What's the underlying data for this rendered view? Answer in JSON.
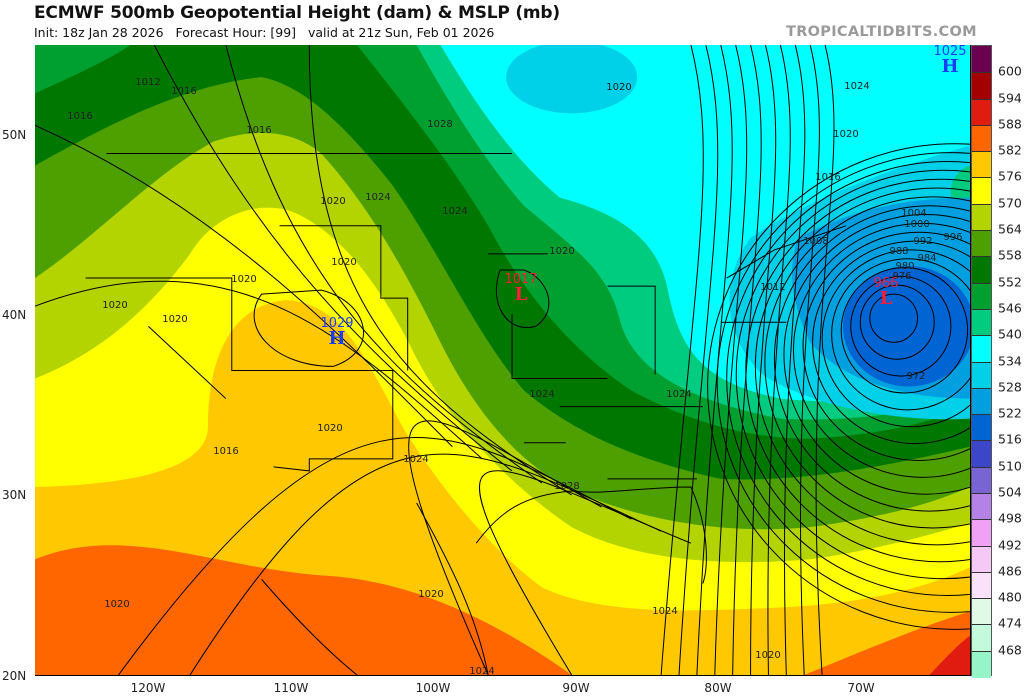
{
  "header": {
    "title": "ECMWF 500mb Geopotential Height (dam) & MSLP (mb)",
    "subtitle": "Init: 18z Jan 28 2026   Forecast Hour: [99]   valid at 21z Sun, Feb 01 2026",
    "watermark": "TROPICALTIDBITS.COM"
  },
  "axes": {
    "lat_labels": [
      "50N",
      "40N",
      "30N",
      "20N"
    ],
    "lon_labels": [
      "120W",
      "110W",
      "100W",
      "90W",
      "80W",
      "70W"
    ]
  },
  "pressure_centers": [
    {
      "type": "H",
      "value": "1029",
      "color": "#1a3cff"
    },
    {
      "type": "L",
      "value": "1017",
      "color": "#ff1a3c"
    },
    {
      "type": "L",
      "value": "966",
      "color": "#ff1a3c"
    },
    {
      "type": "H",
      "value": "1025",
      "color": "#1a3cff"
    }
  ],
  "isobar_labels": [
    "1012",
    "1016",
    "1016",
    "1016",
    "1028",
    "1020",
    "1024",
    "1020",
    "1016",
    "1020",
    "1024",
    "1024",
    "1020",
    "1020",
    "1020",
    "1020",
    "1020",
    "1004",
    "1000",
    "996",
    "992",
    "988",
    "984",
    "980",
    "976",
    "1008",
    "1012",
    "972",
    "1024",
    "1024",
    "1020",
    "1016",
    "1024",
    "1028",
    "1020",
    "1020",
    "1024",
    "1020",
    "1024"
  ],
  "colorbar": {
    "unit": "dam",
    "labels": [
      "600",
      "594",
      "588",
      "582",
      "576",
      "570",
      "564",
      "558",
      "552",
      "546",
      "540",
      "534",
      "528",
      "522",
      "516",
      "510",
      "504",
      "498",
      "492",
      "486",
      "480",
      "474",
      "468"
    ],
    "colors": [
      "#6b0050",
      "#a50000",
      "#e01b10",
      "#ff6600",
      "#ffc800",
      "#ffff00",
      "#b4d400",
      "#4ea000",
      "#007800",
      "#00a030",
      "#00cc80",
      "#00ffff",
      "#00d0e8",
      "#00a0e0",
      "#0064d2",
      "#3c46c8",
      "#7864d2",
      "#b482e6",
      "#f0a0f5",
      "#f5c8f5",
      "#fae1fa",
      "#e1fae6",
      "#c3fadc",
      "#96f5c8"
    ]
  }
}
